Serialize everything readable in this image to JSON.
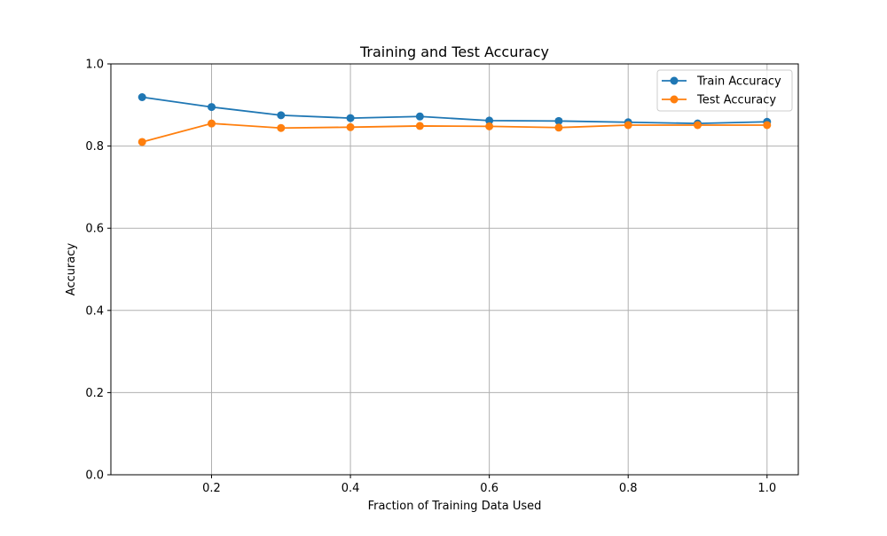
{
  "chart_data": {
    "type": "line",
    "title": "Training and Test Accuracy",
    "xlabel": "Fraction of Training Data Used",
    "ylabel": "Accuracy",
    "xlim": [
      0.055,
      1.045
    ],
    "ylim": [
      0.0,
      1.0
    ],
    "xticks": [
      0.2,
      0.4,
      0.6,
      0.8,
      1.0
    ],
    "xtick_labels": [
      "0.2",
      "0.4",
      "0.6",
      "0.8",
      "1.0"
    ],
    "yticks": [
      0.0,
      0.2,
      0.4,
      0.6,
      0.8,
      1.0
    ],
    "ytick_labels": [
      "0.0",
      "0.2",
      "0.4",
      "0.6",
      "0.8",
      "1.0"
    ],
    "grid": true,
    "legend_position": "top-right",
    "x": [
      0.1,
      0.2,
      0.3,
      0.4,
      0.5,
      0.6,
      0.7,
      0.8,
      0.9,
      1.0
    ],
    "series": [
      {
        "name": "Train Accuracy",
        "color": "#1f77b4",
        "marker": "circle",
        "values": [
          0.919,
          0.895,
          0.875,
          0.868,
          0.872,
          0.862,
          0.861,
          0.858,
          0.855,
          0.859
        ]
      },
      {
        "name": "Test Accuracy",
        "color": "#ff7f0e",
        "marker": "circle",
        "values": [
          0.81,
          0.855,
          0.844,
          0.846,
          0.849,
          0.848,
          0.845,
          0.851,
          0.851,
          0.851
        ]
      }
    ]
  }
}
